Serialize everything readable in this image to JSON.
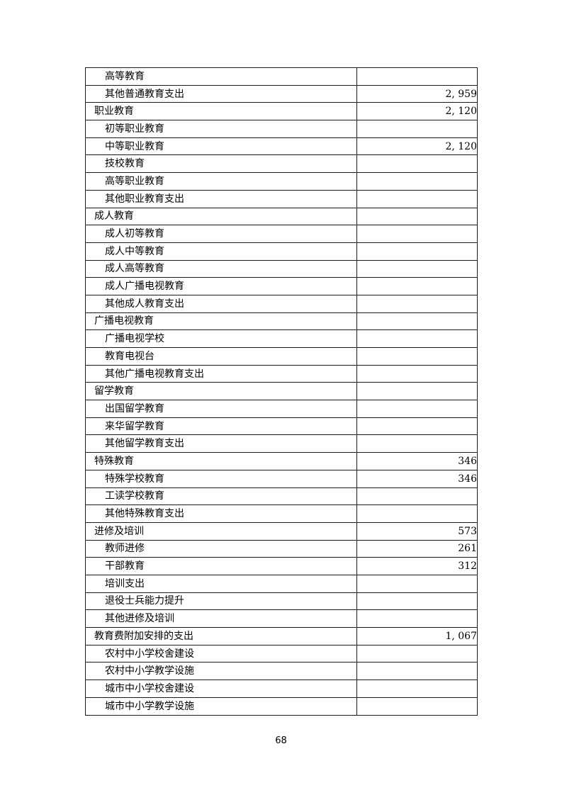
{
  "document": {
    "page_number": "68"
  },
  "table": {
    "columns": [
      "category",
      "amount"
    ],
    "rows": [
      {
        "label": "高等教育",
        "value": "",
        "level": 2
      },
      {
        "label": "其他普通教育支出",
        "value": "2, 959",
        "level": 2
      },
      {
        "label": "职业教育",
        "value": "2, 120",
        "level": 1
      },
      {
        "label": "初等职业教育",
        "value": "",
        "level": 2
      },
      {
        "label": "中等职业教育",
        "value": "2, 120",
        "level": 2
      },
      {
        "label": "技校教育",
        "value": "",
        "level": 2
      },
      {
        "label": "高等职业教育",
        "value": "",
        "level": 2
      },
      {
        "label": "其他职业教育支出",
        "value": "",
        "level": 2
      },
      {
        "label": "成人教育",
        "value": "",
        "level": 1
      },
      {
        "label": "成人初等教育",
        "value": "",
        "level": 2
      },
      {
        "label": "成人中等教育",
        "value": "",
        "level": 2
      },
      {
        "label": "成人高等教育",
        "value": "",
        "level": 2
      },
      {
        "label": "成人广播电视教育",
        "value": "",
        "level": 2
      },
      {
        "label": "其他成人教育支出",
        "value": "",
        "level": 2
      },
      {
        "label": "广播电视教育",
        "value": "",
        "level": 1
      },
      {
        "label": "广播电视学校",
        "value": "",
        "level": 2
      },
      {
        "label": "教育电视台",
        "value": "",
        "level": 2
      },
      {
        "label": "其他广播电视教育支出",
        "value": "",
        "level": 2
      },
      {
        "label": "留学教育",
        "value": "",
        "level": 1
      },
      {
        "label": "出国留学教育",
        "value": "",
        "level": 2
      },
      {
        "label": "来华留学教育",
        "value": "",
        "level": 2
      },
      {
        "label": "其他留学教育支出",
        "value": "",
        "level": 2
      },
      {
        "label": "特殊教育",
        "value": "346",
        "level": 1
      },
      {
        "label": "特殊学校教育",
        "value": "346",
        "level": 2
      },
      {
        "label": "工读学校教育",
        "value": "",
        "level": 2
      },
      {
        "label": "其他特殊教育支出",
        "value": "",
        "level": 2
      },
      {
        "label": "进修及培训",
        "value": "573",
        "level": 1
      },
      {
        "label": "教师进修",
        "value": "261",
        "level": 2
      },
      {
        "label": "干部教育",
        "value": "312",
        "level": 2
      },
      {
        "label": "培训支出",
        "value": "",
        "level": 2
      },
      {
        "label": "退役士兵能力提升",
        "value": "",
        "level": 2
      },
      {
        "label": "其他进修及培训",
        "value": "",
        "level": 2
      },
      {
        "label": "教育费附加安排的支出",
        "value": "1, 067",
        "level": 1
      },
      {
        "label": "农村中小学校舍建设",
        "value": "",
        "level": 2
      },
      {
        "label": "农村中小学教学设施",
        "value": "",
        "level": 2
      },
      {
        "label": "城市中小学校舍建设",
        "value": "",
        "level": 2
      },
      {
        "label": "城市中小学教学设施",
        "value": "",
        "level": 2
      }
    ]
  }
}
